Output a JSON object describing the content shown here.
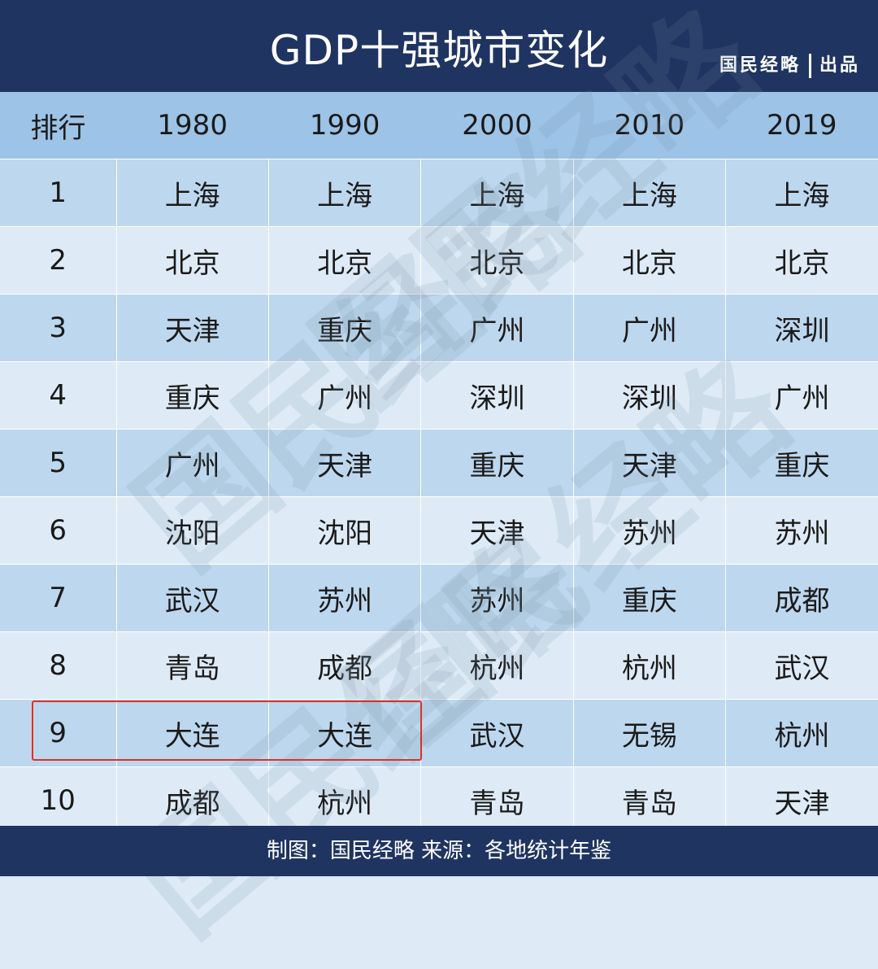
{
  "header": {
    "title": "GDP十强城市变化",
    "brand": "国民经略",
    "brand_suffix": "出品"
  },
  "table": {
    "columns": [
      "排行",
      "1980",
      "1990",
      "2000",
      "2010",
      "2019"
    ],
    "rows": [
      [
        "1",
        "上海",
        "上海",
        "上海",
        "上海",
        "上海"
      ],
      [
        "2",
        "北京",
        "北京",
        "北京",
        "北京",
        "北京"
      ],
      [
        "3",
        "天津",
        "重庆",
        "广州",
        "广州",
        "深圳"
      ],
      [
        "4",
        "重庆",
        "广州",
        "深圳",
        "深圳",
        "广州"
      ],
      [
        "5",
        "广州",
        "天津",
        "重庆",
        "天津",
        "重庆"
      ],
      [
        "6",
        "沈阳",
        "沈阳",
        "天津",
        "苏州",
        "苏州"
      ],
      [
        "7",
        "武汉",
        "苏州",
        "苏州",
        "重庆",
        "成都"
      ],
      [
        "8",
        "青岛",
        "成都",
        "杭州",
        "杭州",
        "武汉"
      ],
      [
        "9",
        "大连",
        "大连",
        "武汉",
        "无锡",
        "杭州"
      ],
      [
        "10",
        "成都",
        "杭州",
        "青岛",
        "青岛",
        "天津"
      ]
    ],
    "highlighted": {
      "row": "9",
      "columns": [
        "排行",
        "1980",
        "1990"
      ],
      "color": "#e0302a"
    }
  },
  "footer": {
    "text": "制图：国民经略  来源：各地统计年鉴"
  },
  "watermark": "国民经略",
  "colors": {
    "dark": "#1f3461",
    "header_row": "#9dc3e6",
    "row_odd": "#bdd7ee",
    "row_even": "#deebf7"
  }
}
